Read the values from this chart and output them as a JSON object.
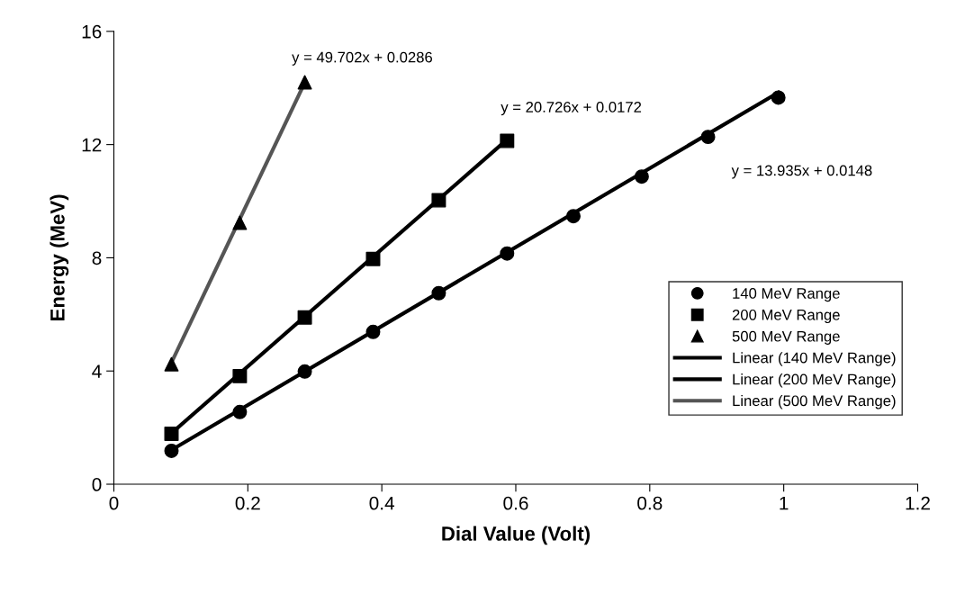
{
  "chart_data": {
    "type": "scatter",
    "xlabel": "Dial Value (Volt)",
    "ylabel": "Energy (MeV)",
    "xlim": [
      0,
      1.2
    ],
    "xticks": [
      0,
      0.2,
      0.4,
      0.6,
      0.8,
      1,
      1.2
    ],
    "ylim": [
      0,
      16
    ],
    "yticks": [
      0,
      4,
      8,
      12,
      16
    ],
    "grid": false,
    "legend": "right",
    "series": [
      {
        "name": "140 MeV Range",
        "marker": "circle",
        "color": "#000000",
        "x": [
          0.086,
          0.188,
          0.285,
          0.387,
          0.485,
          0.587,
          0.686,
          0.788,
          0.887,
          0.992
        ],
        "values": [
          1.18,
          2.55,
          3.98,
          5.38,
          6.75,
          8.15,
          9.47,
          10.87,
          12.27,
          13.66
        ]
      },
      {
        "name": "200 MeV Range",
        "marker": "square",
        "color": "#000000",
        "x": [
          0.086,
          0.188,
          0.285,
          0.387,
          0.485,
          0.587
        ],
        "values": [
          1.78,
          3.82,
          5.89,
          7.96,
          10.03,
          12.13
        ]
      },
      {
        "name": "500 MeV Range",
        "marker": "triangle",
        "color": "#000000",
        "x": [
          0.086,
          0.188,
          0.285
        ],
        "values": [
          4.24,
          9.24,
          14.2
        ]
      },
      {
        "name": "Linear (140 MeV Range)",
        "type": "line",
        "marker": "none",
        "color": "#000000",
        "x": [
          0.086,
          0.992
        ],
        "values": [
          1.21,
          13.84
        ]
      },
      {
        "name": "Linear (200 MeV Range)",
        "type": "line",
        "marker": "none",
        "color": "#000000",
        "x": [
          0.086,
          0.587
        ],
        "values": [
          1.8,
          12.18
        ]
      },
      {
        "name": "Linear (500 MeV Range)",
        "type": "line",
        "marker": "none",
        "color": "#555555",
        "x": [
          0.086,
          0.285
        ],
        "values": [
          4.3,
          14.19
        ]
      }
    ],
    "annotations": [
      "y = 49.702x + 0.0286",
      "y = 20.726x + 0.0172",
      "y = 13.935x + 0.0148"
    ]
  }
}
